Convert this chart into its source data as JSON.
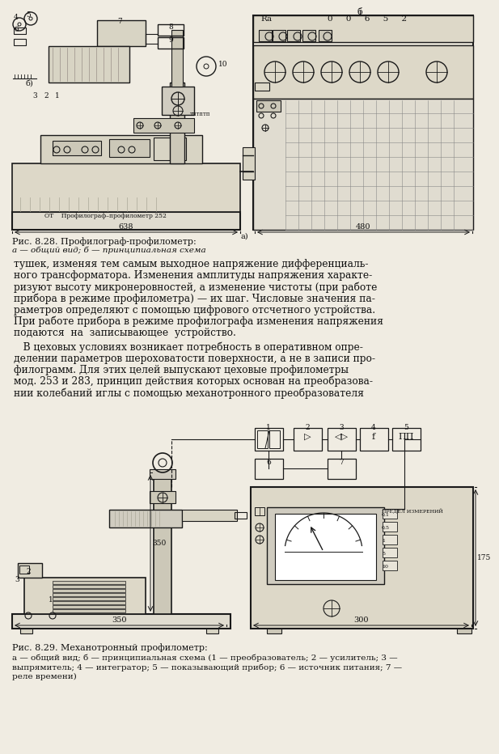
{
  "bg_color": "#f0ece2",
  "text_color": "#111111",
  "fig1_caption_title": "Рис. 8.28. Профилограф-профилометр:",
  "fig1_caption_sub": "а — общий вид; б — принципиальная схема",
  "fig2_caption_title": "Рис. 8.29. Механотронный профилометр:",
  "fig2_caption_sub": "а — общий вид; б — принципиальная схема (1 — преобразователь; 2 — усилитель; 3 —",
  "fig2_caption_sub2": "выпрямитель; 4 — интегратор; 5 — показывающий прибор; 6 — источник питания; 7 —",
  "fig2_caption_sub3": "реле времени)",
  "para1_lines": [
    "тушек, изменяя тем самым выходное напряжение дифференциаль-",
    "ного трансформатора. Изменения амплитуды напряжения характе-",
    "ризуют высоту микронеровностей, а изменение чистоты (при работе",
    "прибора в режиме профилометра) — их шаг. Числовые значения па-",
    "раметров определяют с помощью цифрового отсчетного устройства.",
    "При работе прибора в режиме профилографа изменения напряжения",
    "подаются  на  записывающее  устройство."
  ],
  "para2_lines": [
    "   В цеховых условиях возникает потребность в оперативном опре-",
    "делении параметров шероховатости поверхности, а не в записи про-",
    "филограмм. Для этих целей выпускают цеховые профилометры",
    "мод. 253 и 283, принцип действия которых основан на преобразова-",
    "нии колебаний иглы с помощью механотронного преобразователя"
  ],
  "dim1_left": "638",
  "dim1_right": "480",
  "dim2_bottom": "350",
  "dim2_right_bottom": "300",
  "dim2_right_height": "175",
  "dim2_left_height": "350"
}
